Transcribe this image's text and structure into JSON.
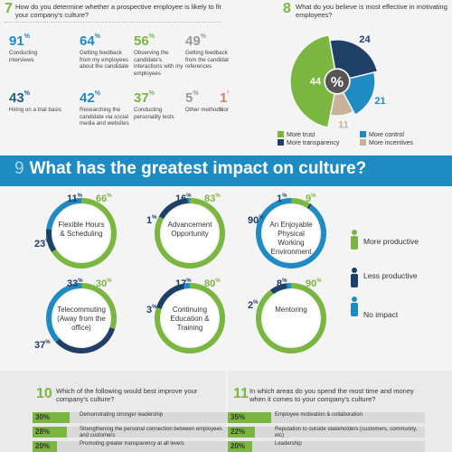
{
  "q7": {
    "number": "7",
    "question": "How do you determine whether a prospective employee is likely to fit your company's culture?",
    "stats": [
      {
        "pct": "91",
        "text": "Conducting interviews",
        "color": "#1e8bc3"
      },
      {
        "pct": "64",
        "text": "Getting feedback from my employees about the candidate",
        "color": "#1e8bc3"
      },
      {
        "pct": "56",
        "text": "Observing the candidate's interactions with my employees",
        "color": "#7ab640"
      },
      {
        "pct": "49",
        "text": "Getting feedback from the candidate's references",
        "color": "#999999"
      },
      {
        "pct": "43",
        "text": "Hiring on a trial basis",
        "color": "#1e5f86"
      },
      {
        "pct": "42",
        "text": "Researching the candidate via social media and websites",
        "color": "#1e8bc3"
      },
      {
        "pct": "37",
        "text": "Conducting personality tests",
        "color": "#7ab640"
      },
      {
        "pct": "5",
        "text": "Other methods",
        "color": "#999999"
      },
      {
        "pct": "1",
        "text": "None",
        "color": "#c48a6a"
      }
    ],
    "pct_sign": "%"
  },
  "q8": {
    "number": "8",
    "question": "What do you believe is most effective in motivating employees?",
    "center": "%",
    "chart_data": {
      "type": "pie",
      "values": [
        44,
        24,
        21,
        11
      ],
      "labels": [
        "More trust",
        "More transparency",
        "More control",
        "More incentives"
      ],
      "colors": [
        "#7ab640",
        "#1e3f66",
        "#1e8bc3",
        "#c8b39a"
      ]
    },
    "legend": [
      "More trust",
      "More transparency",
      "More control",
      "More incentives"
    ]
  },
  "q9": {
    "number": "9",
    "title": "What has the greatest impact on culture?",
    "items": [
      {
        "label": "Flexible Hours & Scheduling",
        "more": "66",
        "less": "11",
        "none": "23"
      },
      {
        "label": "Advancement Opportunity",
        "more": "83",
        "less": "16",
        "none": "1"
      },
      {
        "label": "An Enjoyable Physical Working Environment",
        "more": "9",
        "less": "1",
        "none": "90"
      },
      {
        "label": "Telecommuting (Away from the office)",
        "more": "30",
        "less": "33",
        "none": "37"
      },
      {
        "label": "Continuing Education & Training",
        "more": "80",
        "less": "17",
        "none": "3"
      },
      {
        "label": "Mentoring",
        "more": "90",
        "less": "8",
        "none": "2"
      }
    ],
    "legend": {
      "more": "More productive",
      "less": "Less productive",
      "none": "No impact"
    }
  },
  "q10": {
    "number": "10",
    "question": "Which of the following would best improve your company's culture?",
    "bars": [
      {
        "pct": "30%",
        "label": "Demonstrating stronger leadership",
        "value": 30
      },
      {
        "pct": "28%",
        "label": "Strengthening the personal connection between employees and customers",
        "value": 28
      },
      {
        "pct": "20%",
        "label": "Promoting greater transparency at all levels",
        "value": 20
      }
    ]
  },
  "q11": {
    "number": "11",
    "question": "In which areas do you spend the most time and money when it comes to your company's culture?",
    "bars": [
      {
        "pct": "35%",
        "label": "Employee motivation & collaboration",
        "value": 35
      },
      {
        "pct": "22%",
        "label": "Reputation to outside stakeholders (customers, community, etc)",
        "value": 22
      },
      {
        "pct": "20%",
        "label": "Leadership",
        "value": 20
      }
    ]
  },
  "colors": {
    "blue": "#1e8bc3",
    "green": "#7ab640",
    "navy": "#1e3f66",
    "grey": "#999999",
    "tan": "#c8b39a"
  }
}
